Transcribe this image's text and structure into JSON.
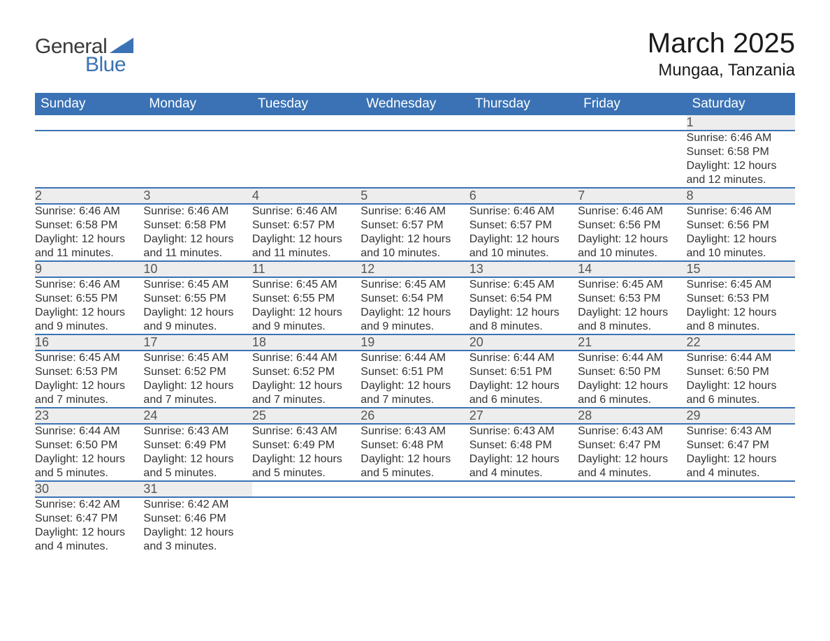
{
  "brand": {
    "general": "General",
    "blue": "Blue",
    "shape_color": "#3a72b5"
  },
  "title": {
    "month": "March 2025",
    "location": "Mungaa, Tanzania"
  },
  "colors": {
    "header_bg": "#3a72b5",
    "header_text": "#ffffff",
    "daynum_bg": "#ededed",
    "daynum_text": "#555555",
    "border": "#3a72b5",
    "body_text": "#333333"
  },
  "day_headers": [
    "Sunday",
    "Monday",
    "Tuesday",
    "Wednesday",
    "Thursday",
    "Friday",
    "Saturday"
  ],
  "weeks": [
    [
      null,
      null,
      null,
      null,
      null,
      null,
      {
        "n": "1",
        "sr": "Sunrise: 6:46 AM",
        "ss": "Sunset: 6:58 PM",
        "dl": "Daylight: 12 hours and 12 minutes."
      }
    ],
    [
      {
        "n": "2",
        "sr": "Sunrise: 6:46 AM",
        "ss": "Sunset: 6:58 PM",
        "dl": "Daylight: 12 hours and 11 minutes."
      },
      {
        "n": "3",
        "sr": "Sunrise: 6:46 AM",
        "ss": "Sunset: 6:58 PM",
        "dl": "Daylight: 12 hours and 11 minutes."
      },
      {
        "n": "4",
        "sr": "Sunrise: 6:46 AM",
        "ss": "Sunset: 6:57 PM",
        "dl": "Daylight: 12 hours and 11 minutes."
      },
      {
        "n": "5",
        "sr": "Sunrise: 6:46 AM",
        "ss": "Sunset: 6:57 PM",
        "dl": "Daylight: 12 hours and 10 minutes."
      },
      {
        "n": "6",
        "sr": "Sunrise: 6:46 AM",
        "ss": "Sunset: 6:57 PM",
        "dl": "Daylight: 12 hours and 10 minutes."
      },
      {
        "n": "7",
        "sr": "Sunrise: 6:46 AM",
        "ss": "Sunset: 6:56 PM",
        "dl": "Daylight: 12 hours and 10 minutes."
      },
      {
        "n": "8",
        "sr": "Sunrise: 6:46 AM",
        "ss": "Sunset: 6:56 PM",
        "dl": "Daylight: 12 hours and 10 minutes."
      }
    ],
    [
      {
        "n": "9",
        "sr": "Sunrise: 6:46 AM",
        "ss": "Sunset: 6:55 PM",
        "dl": "Daylight: 12 hours and 9 minutes."
      },
      {
        "n": "10",
        "sr": "Sunrise: 6:45 AM",
        "ss": "Sunset: 6:55 PM",
        "dl": "Daylight: 12 hours and 9 minutes."
      },
      {
        "n": "11",
        "sr": "Sunrise: 6:45 AM",
        "ss": "Sunset: 6:55 PM",
        "dl": "Daylight: 12 hours and 9 minutes."
      },
      {
        "n": "12",
        "sr": "Sunrise: 6:45 AM",
        "ss": "Sunset: 6:54 PM",
        "dl": "Daylight: 12 hours and 9 minutes."
      },
      {
        "n": "13",
        "sr": "Sunrise: 6:45 AM",
        "ss": "Sunset: 6:54 PM",
        "dl": "Daylight: 12 hours and 8 minutes."
      },
      {
        "n": "14",
        "sr": "Sunrise: 6:45 AM",
        "ss": "Sunset: 6:53 PM",
        "dl": "Daylight: 12 hours and 8 minutes."
      },
      {
        "n": "15",
        "sr": "Sunrise: 6:45 AM",
        "ss": "Sunset: 6:53 PM",
        "dl": "Daylight: 12 hours and 8 minutes."
      }
    ],
    [
      {
        "n": "16",
        "sr": "Sunrise: 6:45 AM",
        "ss": "Sunset: 6:53 PM",
        "dl": "Daylight: 12 hours and 7 minutes."
      },
      {
        "n": "17",
        "sr": "Sunrise: 6:45 AM",
        "ss": "Sunset: 6:52 PM",
        "dl": "Daylight: 12 hours and 7 minutes."
      },
      {
        "n": "18",
        "sr": "Sunrise: 6:44 AM",
        "ss": "Sunset: 6:52 PM",
        "dl": "Daylight: 12 hours and 7 minutes."
      },
      {
        "n": "19",
        "sr": "Sunrise: 6:44 AM",
        "ss": "Sunset: 6:51 PM",
        "dl": "Daylight: 12 hours and 7 minutes."
      },
      {
        "n": "20",
        "sr": "Sunrise: 6:44 AM",
        "ss": "Sunset: 6:51 PM",
        "dl": "Daylight: 12 hours and 6 minutes."
      },
      {
        "n": "21",
        "sr": "Sunrise: 6:44 AM",
        "ss": "Sunset: 6:50 PM",
        "dl": "Daylight: 12 hours and 6 minutes."
      },
      {
        "n": "22",
        "sr": "Sunrise: 6:44 AM",
        "ss": "Sunset: 6:50 PM",
        "dl": "Daylight: 12 hours and 6 minutes."
      }
    ],
    [
      {
        "n": "23",
        "sr": "Sunrise: 6:44 AM",
        "ss": "Sunset: 6:50 PM",
        "dl": "Daylight: 12 hours and 5 minutes."
      },
      {
        "n": "24",
        "sr": "Sunrise: 6:43 AM",
        "ss": "Sunset: 6:49 PM",
        "dl": "Daylight: 12 hours and 5 minutes."
      },
      {
        "n": "25",
        "sr": "Sunrise: 6:43 AM",
        "ss": "Sunset: 6:49 PM",
        "dl": "Daylight: 12 hours and 5 minutes."
      },
      {
        "n": "26",
        "sr": "Sunrise: 6:43 AM",
        "ss": "Sunset: 6:48 PM",
        "dl": "Daylight: 12 hours and 5 minutes."
      },
      {
        "n": "27",
        "sr": "Sunrise: 6:43 AM",
        "ss": "Sunset: 6:48 PM",
        "dl": "Daylight: 12 hours and 4 minutes."
      },
      {
        "n": "28",
        "sr": "Sunrise: 6:43 AM",
        "ss": "Sunset: 6:47 PM",
        "dl": "Daylight: 12 hours and 4 minutes."
      },
      {
        "n": "29",
        "sr": "Sunrise: 6:43 AM",
        "ss": "Sunset: 6:47 PM",
        "dl": "Daylight: 12 hours and 4 minutes."
      }
    ],
    [
      {
        "n": "30",
        "sr": "Sunrise: 6:42 AM",
        "ss": "Sunset: 6:47 PM",
        "dl": "Daylight: 12 hours and 4 minutes."
      },
      {
        "n": "31",
        "sr": "Sunrise: 6:42 AM",
        "ss": "Sunset: 6:46 PM",
        "dl": "Daylight: 12 hours and 3 minutes."
      },
      null,
      null,
      null,
      null,
      null
    ]
  ]
}
